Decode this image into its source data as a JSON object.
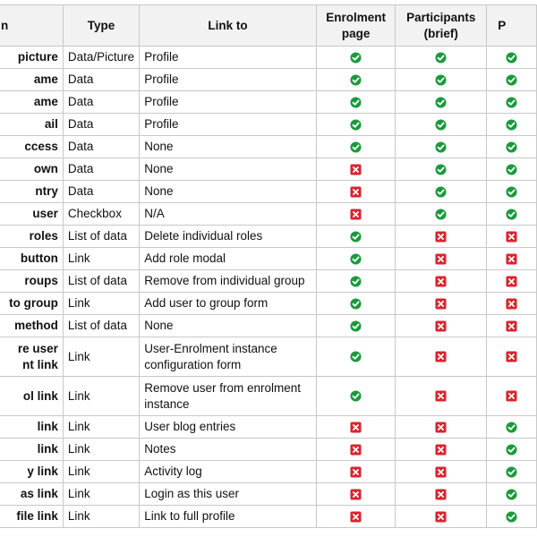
{
  "colors": {
    "check": "#1a9a3c",
    "cross": "#d9252f",
    "header_bg": "#f2f2f2"
  },
  "headers": {
    "name": "n",
    "type": "Type",
    "link": "Link to",
    "enrol_l1": "Enrolment",
    "enrol_l2": "page",
    "part_l1": "Participants",
    "part_l2": "(brief)",
    "last": "P"
  },
  "rows": [
    {
      "name": "picture",
      "type": "Data/Picture",
      "link": "Profile",
      "enrol": "check",
      "part": "check",
      "last": "check"
    },
    {
      "name": "ame",
      "type": "Data",
      "link": "Profile",
      "enrol": "check",
      "part": "check",
      "last": "check"
    },
    {
      "name": "ame",
      "type": "Data",
      "link": "Profile",
      "enrol": "check",
      "part": "check",
      "last": "check"
    },
    {
      "name": "ail",
      "type": "Data",
      "link": "Profile",
      "enrol": "check",
      "part": "check",
      "last": "check"
    },
    {
      "name": "ccess",
      "type": "Data",
      "link": "None",
      "enrol": "check",
      "part": "check",
      "last": "check"
    },
    {
      "name": "own",
      "type": "Data",
      "link": "None",
      "enrol": "cross",
      "part": "check",
      "last": "check"
    },
    {
      "name": "ntry",
      "type": "Data",
      "link": "None",
      "enrol": "cross",
      "part": "check",
      "last": "check"
    },
    {
      "name": "user",
      "type": "Checkbox",
      "link": "N/A",
      "enrol": "cross",
      "part": "check",
      "last": "check"
    },
    {
      "name": "roles",
      "type": "List of data",
      "link": "Delete individual roles",
      "enrol": "check",
      "part": "cross",
      "last": "cross"
    },
    {
      "name": "button",
      "type": "Link",
      "link": "Add role modal",
      "enrol": "check",
      "part": "cross",
      "last": "cross"
    },
    {
      "name": "roups",
      "type": "List of data",
      "link": "Remove from individual group",
      "enrol": "check",
      "part": "cross",
      "last": "cross"
    },
    {
      "name": "to group",
      "type": "Link",
      "link": "Add user to group form",
      "enrol": "check",
      "part": "cross",
      "last": "cross"
    },
    {
      "name": "method",
      "type": "List of data",
      "link": "None",
      "enrol": "check",
      "part": "cross",
      "last": "cross"
    },
    {
      "name": "re user",
      "name2": "nt link",
      "type": "Link",
      "link": "User-Enrolment instance",
      "link2": "configuration form",
      "enrol": "check",
      "part": "cross",
      "last": "cross",
      "tall": true
    },
    {
      "name": "ol link",
      "type": "Link",
      "link": "Remove user from enrolment",
      "link2": "instance",
      "enrol": "check",
      "part": "cross",
      "last": "cross",
      "tall": true
    },
    {
      "name": "link",
      "type": "Link",
      "link": "User blog entries",
      "enrol": "cross",
      "part": "cross",
      "last": "check"
    },
    {
      "name": "link",
      "type": "Link",
      "link": "Notes",
      "enrol": "cross",
      "part": "cross",
      "last": "check"
    },
    {
      "name": "y link",
      "type": "Link",
      "link": "Activity log",
      "enrol": "cross",
      "part": "cross",
      "last": "check"
    },
    {
      "name": "as link",
      "type": "Link",
      "link": "Login as this user",
      "enrol": "cross",
      "part": "cross",
      "last": "check"
    },
    {
      "name": "file link",
      "type": "Link",
      "link": "Link to full profile",
      "enrol": "cross",
      "part": "cross",
      "last": "check"
    }
  ]
}
